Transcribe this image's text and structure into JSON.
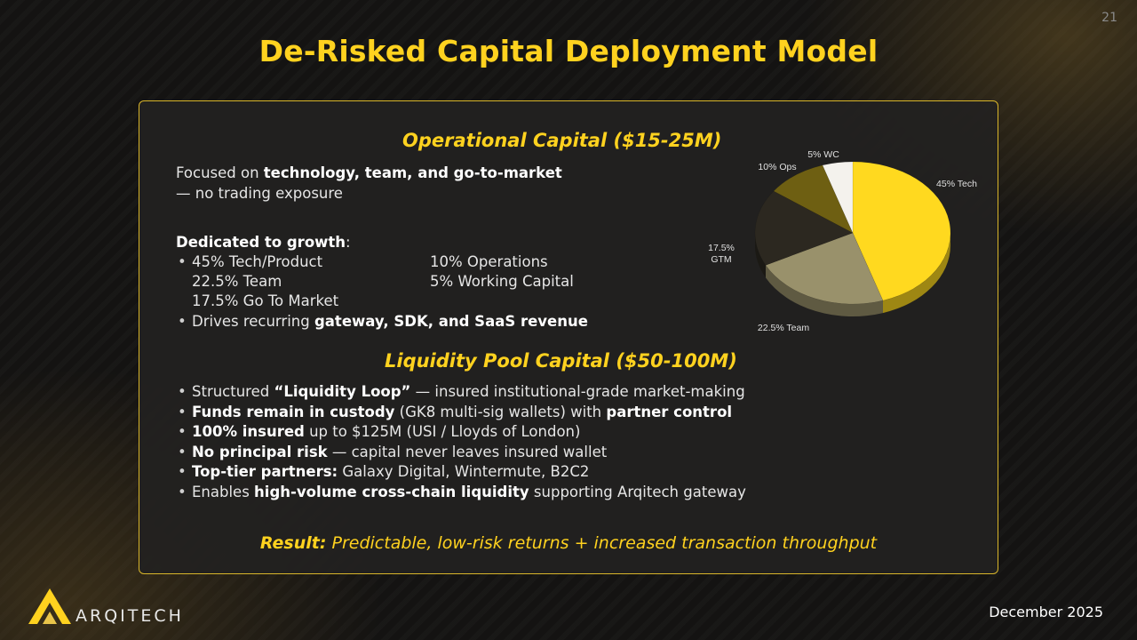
{
  "slide": {
    "page_number": "21",
    "title": "De-Risked Capital Deployment Model",
    "date": "December 2025"
  },
  "brand": {
    "name": "ARQITECH",
    "accent_color": "#ffd21f"
  },
  "operational": {
    "heading": "Operational Capital ($15-25M)",
    "focus_prefix": "Focused on ",
    "focus_bold": "technology, team, and go-to-market",
    "focus_suffix": "— no trading exposure",
    "growth_title_bold": "Dedicated to growth",
    "growth_title_suffix": ":",
    "allocations": {
      "tech": "45% Tech/Product",
      "team": "22.5% Team",
      "gtm": "17.5% Go To Market",
      "ops": "10% Operations",
      "wc": "5% Working Capital"
    },
    "drives_prefix": "Drives recurring ",
    "drives_bold": "gateway, SDK, and SaaS revenue"
  },
  "liquidity": {
    "heading": "Liquidity Pool Capital ($50-100M)",
    "bullets": [
      {
        "pre": "Structured ",
        "bold": "“Liquidity Loop”",
        "post": " — insured institutional-grade market-making"
      },
      {
        "pre": "",
        "bold": "Funds remain in custody",
        "post": " (GK8 multi-sig wallets) with ",
        "bold2": "partner control"
      },
      {
        "pre": "",
        "bold": "100% insured",
        "post": " up to $125M (USI / Lloyds of London)"
      },
      {
        "pre": "",
        "bold": "No principal risk",
        "post": " — capital never leaves insured wallet"
      },
      {
        "pre": "",
        "bold": "Top-tier partners:",
        "post": " Galaxy Digital, Wintermute, B2C2"
      },
      {
        "pre": "Enables ",
        "bold": "high-volume cross-chain liquidity",
        "post": " supporting Arqitech gateway"
      }
    ]
  },
  "result": {
    "label": "Result:",
    "text": " Predictable, low-risk returns + increased transaction throughput"
  },
  "chart_data": {
    "type": "pie",
    "title": "",
    "style": "3d",
    "slices": [
      {
        "label": "45% Tech",
        "value": 45,
        "color": "#ffd91f"
      },
      {
        "label": "22.5% Team",
        "value": 22.5,
        "color": "#99916b"
      },
      {
        "label": "17.5% GTM",
        "label_line1": "17.5%",
        "label_line2": "GTM",
        "value": 17.5,
        "color": "#2c2820"
      },
      {
        "label": "10% Ops",
        "value": 10,
        "color": "#6e5f12"
      },
      {
        "label": "5% WC",
        "value": 5,
        "color": "#f4f2ed"
      }
    ]
  }
}
